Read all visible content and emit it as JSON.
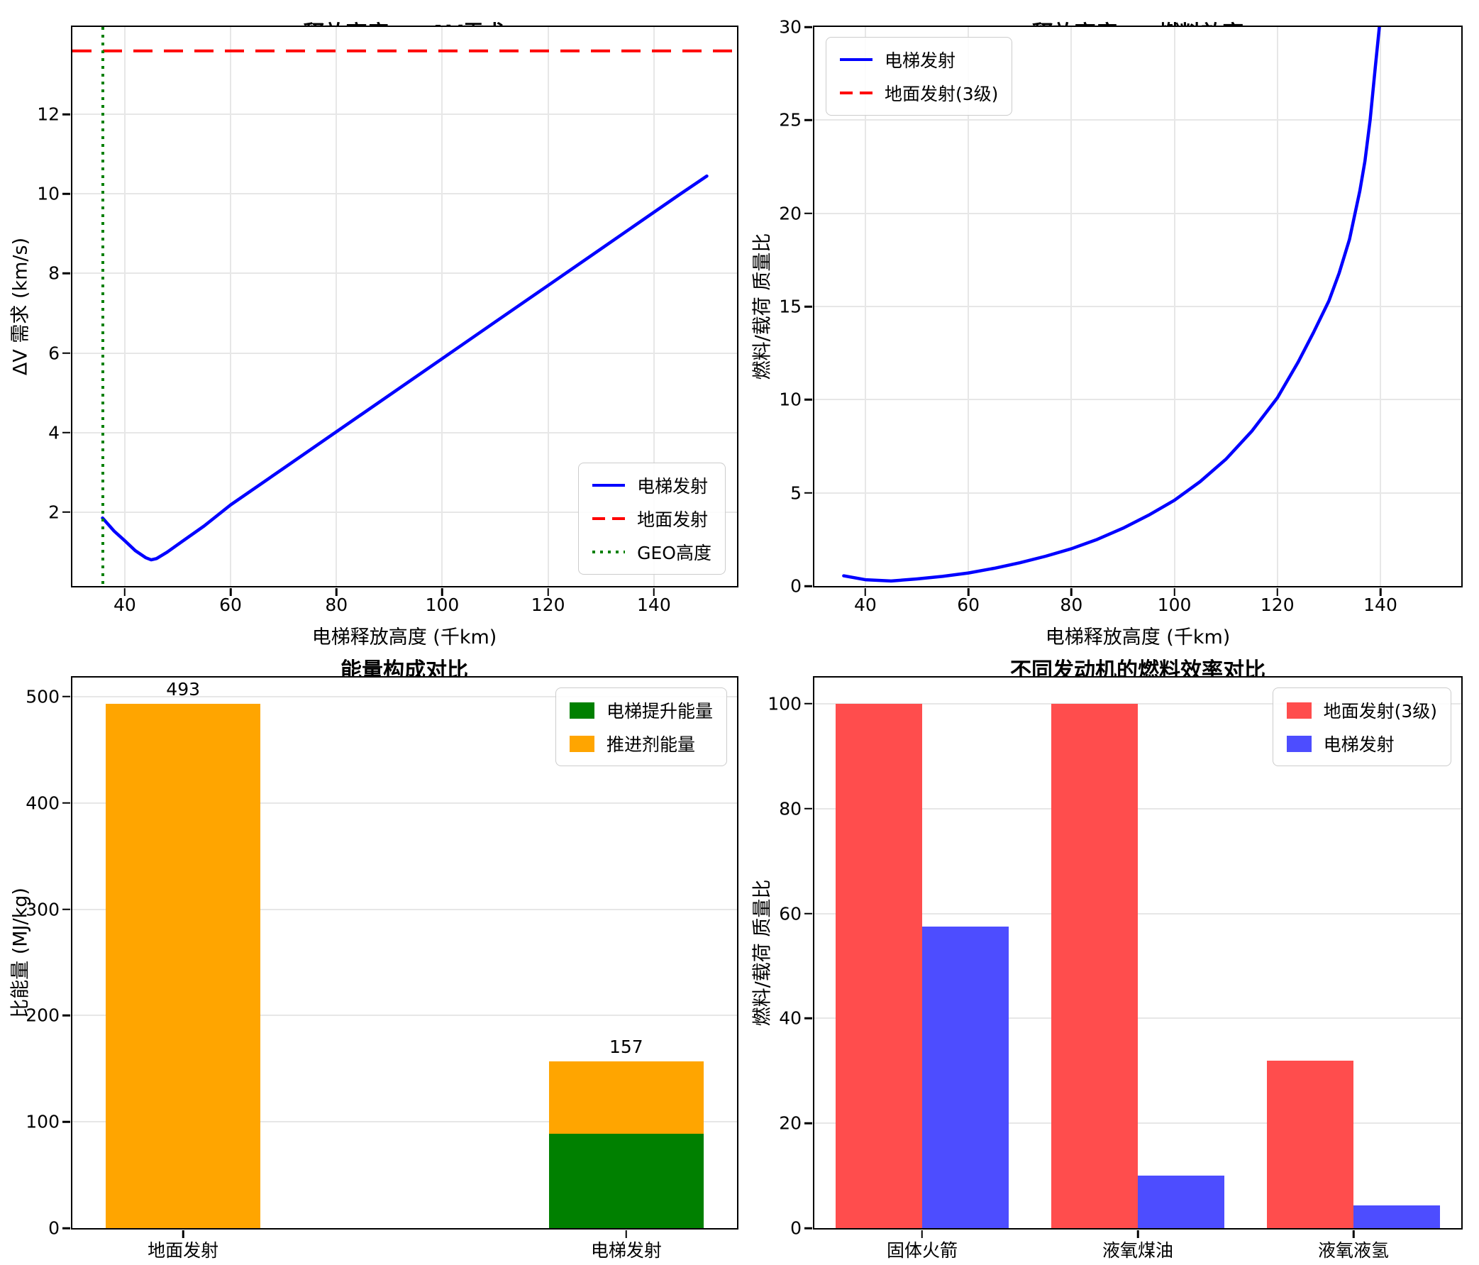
{
  "figure": {
    "background": "#ffffff"
  },
  "colors": {
    "elevator_line_blue": "#0000ff",
    "ground_line_red": "#ff0000",
    "geo_line_green": "#008000",
    "lift_energy_green": "#008000",
    "propellant_energy_orange": "#ffa500",
    "ground_bar_red": "#ff4d4d",
    "elevator_bar_blue": "#4d4dff",
    "gridline": "#e7e7e7",
    "spine": "#000000"
  },
  "chart_data": [
    {
      "type": "line",
      "title": "释放高度 vs ΔV需求",
      "xlabel": "电梯释放高度 (千km)",
      "ylabel": "ΔV 需求 (km/s)",
      "xlim": [
        30.1,
        155.7
      ],
      "ylim": [
        0.14,
        14.2
      ],
      "xticks": [
        40,
        60,
        80,
        100,
        120,
        140
      ],
      "yticks": [
        2,
        4,
        6,
        8,
        10,
        12
      ],
      "grid": {
        "x": true,
        "y": true
      },
      "legend": {
        "loc": "lower-right",
        "items": [
          {
            "label": "电梯发射",
            "color": "#0000ff",
            "marker": "line",
            "dash": "solid"
          },
          {
            "label": "地面发射",
            "color": "#ff0000",
            "marker": "line",
            "dash": "dashed"
          },
          {
            "label": "GEO高度",
            "color": "#008000",
            "marker": "line",
            "dash": "dotted"
          }
        ]
      },
      "lines": [
        {
          "name": "电梯发射",
          "color": "#0000ff",
          "dash": "solid",
          "width": 4.5,
          "x": [
            35.8,
            38,
            40,
            42,
            44,
            45,
            46,
            48,
            50,
            55,
            60,
            70,
            80,
            90,
            100,
            110,
            120,
            130,
            140,
            145,
            150
          ],
          "y": [
            1.85,
            1.52,
            1.28,
            1.03,
            0.85,
            0.8,
            0.83,
            0.99,
            1.18,
            1.65,
            2.18,
            3.1,
            4.02,
            4.94,
            5.86,
            6.78,
            7.7,
            8.62,
            9.54,
            10.0,
            10.45
          ]
        },
        {
          "name": "地面发射",
          "color": "#ff0000",
          "dash": "dashed",
          "width": 4.5,
          "hline": 13.6
        },
        {
          "name": "GEO高度",
          "color": "#008000",
          "dash": "dotted",
          "width": 4,
          "vline": 35.8
        }
      ]
    },
    {
      "type": "line",
      "title": "释放高度 vs 燃料效率",
      "xlabel": "电梯释放高度 (千km)",
      "ylabel": "燃料/载荷 质量比",
      "xlim": [
        30.1,
        155.7
      ],
      "ylim": [
        0,
        30
      ],
      "xticks": [
        40,
        60,
        80,
        100,
        120,
        140
      ],
      "yticks": [
        0,
        5,
        10,
        15,
        20,
        25,
        30
      ],
      "grid": {
        "x": true,
        "y": true
      },
      "legend": {
        "loc": "upper-left",
        "items": [
          {
            "label": "电梯发射",
            "color": "#0000ff",
            "marker": "line",
            "dash": "solid"
          },
          {
            "label": "地面发射(3级)",
            "color": "#ff0000",
            "marker": "line",
            "dash": "dashed"
          }
        ]
      },
      "lines": [
        {
          "name": "电梯发射",
          "color": "#0000ff",
          "dash": "solid",
          "width": 4.5,
          "x": [
            35.8,
            40,
            45,
            50,
            55,
            60,
            65,
            70,
            75,
            80,
            85,
            90,
            95,
            100,
            105,
            110,
            115,
            120,
            124,
            127,
            130,
            132,
            134,
            136,
            137,
            138,
            139,
            139.8,
            140.3
          ],
          "y": [
            0.55,
            0.34,
            0.27,
            0.38,
            0.52,
            0.7,
            0.95,
            1.25,
            1.6,
            2.0,
            2.5,
            3.1,
            3.8,
            4.6,
            5.6,
            6.8,
            8.3,
            10.1,
            12.0,
            13.6,
            15.3,
            16.8,
            18.6,
            21.2,
            22.8,
            25.0,
            27.8,
            30.0,
            32.0
          ]
        }
      ]
    },
    {
      "type": "bar",
      "title": "能量构成对比",
      "ylabel": "比能量 (MJ/kg)",
      "categories": [
        "地面发射",
        "电梯发射"
      ],
      "bar_mode": "stacked",
      "xlim": [
        -0.25,
        1.25
      ],
      "positions": [
        0,
        1
      ],
      "bar_width": 0.35,
      "ylim": [
        0,
        518
      ],
      "yticks": [
        0,
        100,
        200,
        300,
        400,
        500
      ],
      "grid": {
        "x": false,
        "y": true
      },
      "legend": {
        "loc": "upper-right",
        "items": [
          {
            "label": "电梯提升能量",
            "color": "#008000",
            "marker": "patch"
          },
          {
            "label": "推进剂能量",
            "color": "#ffa500",
            "marker": "patch"
          }
        ]
      },
      "series": [
        {
          "name": "电梯提升能量",
          "color": "#008000",
          "values": [
            0,
            88.5
          ]
        },
        {
          "name": "推进剂能量",
          "color": "#ffa500",
          "values": [
            493,
            68.5
          ]
        }
      ],
      "totals": [
        493,
        157
      ]
    },
    {
      "type": "bar",
      "title": "不同发动机的燃料效率对比",
      "ylabel": "燃料/载荷 质量比",
      "categories": [
        "固体火箭",
        "液氧煤油",
        "液氧液氢"
      ],
      "bar_mode": "grouped",
      "xlim": [
        -0.5,
        2.5
      ],
      "positions": [
        0,
        1,
        2
      ],
      "bar_width": 0.4,
      "offsets": [
        -0.2,
        0.2
      ],
      "ylim": [
        0,
        105
      ],
      "yticks": [
        0,
        20,
        40,
        60,
        80,
        100
      ],
      "grid": {
        "x": false,
        "y": true
      },
      "legend": {
        "loc": "upper-right",
        "items": [
          {
            "label": "地面发射(3级)",
            "color": "#ff4d4d",
            "marker": "patch"
          },
          {
            "label": "电梯发射",
            "color": "#4d4dff",
            "marker": "patch"
          }
        ]
      },
      "series": [
        {
          "name": "地面发射(3级)",
          "color": "#ff4d4d",
          "values": [
            100,
            100,
            32
          ]
        },
        {
          "name": "电梯发射",
          "color": "#4d4dff",
          "values": [
            57.5,
            10,
            4.3
          ]
        }
      ],
      "totals": []
    }
  ]
}
